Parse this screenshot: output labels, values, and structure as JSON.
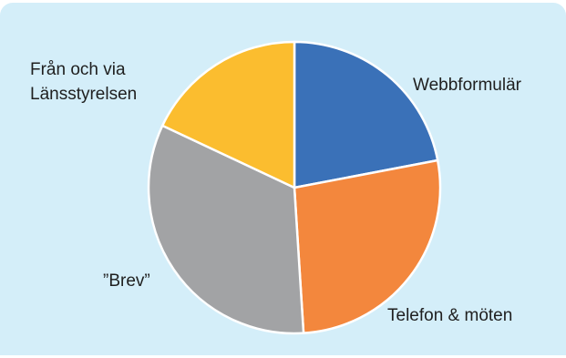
{
  "chart_data": {
    "type": "pie",
    "slices": [
      {
        "label": "Webbformulär",
        "value": 22,
        "color": "#3a71b8"
      },
      {
        "label": "Telefon & möten",
        "value": 27,
        "color": "#f3873d"
      },
      {
        "label": "”Brev”",
        "value": 33,
        "color": "#a2a3a5"
      },
      {
        "label": "Från och via\nLänsstyrelsen",
        "value": 18,
        "color": "#fbbd2f"
      }
    ]
  }
}
